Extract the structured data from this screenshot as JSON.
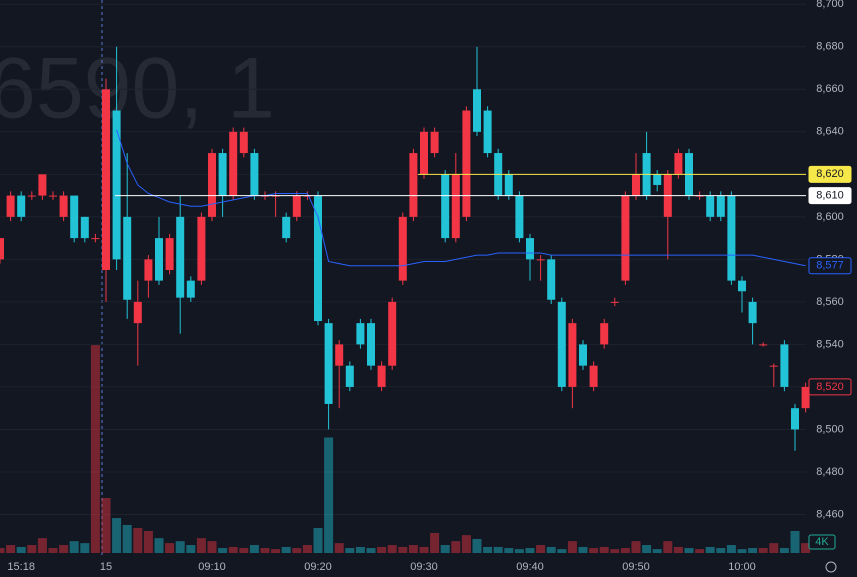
{
  "chart_data": {
    "type": "candlestick",
    "watermark": "6590, 1",
    "categories": [
      null,
      null,
      "15:18",
      null,
      null,
      null,
      null,
      null,
      null,
      null,
      "15",
      null,
      null,
      null,
      null,
      null,
      null,
      null,
      null,
      null,
      "09:10",
      null,
      null,
      null,
      null,
      null,
      null,
      null,
      null,
      null,
      "09:20",
      null,
      null,
      null,
      null,
      null,
      null,
      null,
      null,
      null,
      "09:30",
      null,
      null,
      null,
      null,
      null,
      null,
      null,
      null,
      null,
      "09:40",
      null,
      null,
      null,
      null,
      null,
      null,
      null,
      null,
      null,
      "09:50",
      null,
      null,
      null,
      null,
      null,
      null,
      null,
      null,
      null,
      "10:00",
      null,
      null,
      null,
      null,
      null,
      null
    ],
    "open": [
      8580,
      8600,
      8610,
      8610,
      8610,
      8610,
      8600,
      8610,
      8600,
      8590,
      8575,
      8650,
      8600,
      8550,
      8570,
      8590,
      8575,
      8600,
      8570,
      8570,
      8600,
      8630,
      8610,
      8630,
      8630,
      8610,
      8610,
      8600,
      8600,
      8610,
      8610,
      8550,
      8530,
      8530,
      8550,
      8550,
      8520,
      8530,
      8570,
      8600,
      8620,
      8630,
      8620,
      8590,
      8600,
      8660,
      8650,
      8630,
      8620,
      8610,
      8590,
      8580,
      8580,
      8560,
      8520,
      8540,
      8520,
      8540,
      8560,
      8570,
      8610,
      8630,
      8620,
      8600,
      8620,
      8630,
      8610,
      8610,
      8610,
      8610,
      8570,
      8560,
      8540,
      8530,
      8540,
      8510,
      8510
    ],
    "high": [
      8590,
      8612,
      8612,
      8612,
      8620,
      8612,
      8612,
      8610,
      8600,
      8592,
      8665,
      8680,
      8630,
      8570,
      8582,
      8600,
      8592,
      8610,
      8572,
      8602,
      8632,
      8632,
      8642,
      8642,
      8632,
      8612,
      8612,
      8602,
      8612,
      8612,
      8612,
      8552,
      8542,
      8532,
      8552,
      8552,
      8532,
      8562,
      8602,
      8632,
      8642,
      8642,
      8622,
      8630,
      8652,
      8680,
      8652,
      8632,
      8622,
      8612,
      8592,
      8582,
      8582,
      8562,
      8552,
      8542,
      8532,
      8552,
      8562,
      8612,
      8630,
      8640,
      8622,
      8622,
      8632,
      8632,
      8612,
      8612,
      8612,
      8612,
      8572,
      8562,
      8541,
      8531,
      8542,
      8512,
      8522
    ],
    "low": [
      8578,
      8598,
      8598,
      8608,
      8608,
      8608,
      8598,
      8588,
      8588,
      8588,
      8560,
      8575,
      8552,
      8530,
      8562,
      8568,
      8573,
      8545,
      8560,
      8568,
      8598,
      8600,
      8608,
      8628,
      8608,
      8608,
      8600,
      8588,
      8598,
      8608,
      8549,
      8500,
      8510,
      8518,
      8538,
      8528,
      8518,
      8528,
      8568,
      8598,
      8618,
      8628,
      8588,
      8588,
      8598,
      8638,
      8628,
      8608,
      8608,
      8588,
      8570,
      8570,
      8559,
      8518,
      8510,
      8528,
      8518,
      8538,
      8558,
      8568,
      8608,
      8608,
      8612,
      8580,
      8618,
      8608,
      8608,
      8598,
      8598,
      8568,
      8555,
      8540,
      8539,
      8520,
      8518,
      8490,
      8508
    ],
    "close": [
      8590,
      8610,
      8600,
      8610,
      8620,
      8610,
      8610,
      8590,
      8590,
      8590,
      8660,
      8580,
      8561,
      8560,
      8580,
      8570,
      8590,
      8562,
      8562,
      8600,
      8630,
      8610,
      8640,
      8640,
      8610,
      8610,
      8610,
      8590,
      8610,
      8610,
      8551,
      8512,
      8540,
      8520,
      8540,
      8530,
      8530,
      8560,
      8600,
      8630,
      8640,
      8640,
      8590,
      8620,
      8650,
      8640,
      8630,
      8610,
      8610,
      8590,
      8580,
      8580,
      8561,
      8520,
      8550,
      8530,
      8530,
      8550,
      8560,
      8610,
      8620,
      8610,
      8615,
      8620,
      8630,
      8610,
      8610,
      8600,
      8600,
      8570,
      8565,
      8550,
      8540,
      8530,
      8520,
      8500,
      8520
    ],
    "volume": [
      1800,
      2900,
      2200,
      2900,
      5400,
      1800,
      2900,
      4300,
      3600,
      75600,
      20000,
      12700,
      10200,
      9100,
      8000,
      5400,
      3600,
      4300,
      2900,
      5400,
      4300,
      1800,
      2200,
      1800,
      2900,
      1800,
      1400,
      2200,
      1800,
      2900,
      9100,
      42000,
      3600,
      1800,
      2200,
      1800,
      2200,
      2900,
      2200,
      2900,
      2200,
      7300,
      2900,
      4300,
      6500,
      5100,
      2200,
      2200,
      1800,
      1400,
      1800,
      2900,
      2200,
      1400,
      4300,
      2200,
      1800,
      2200,
      1400,
      1800,
      4300,
      2900,
      1400,
      4300,
      2200,
      1800,
      1400,
      2200,
      1800,
      2900,
      1400,
      1800,
      1800,
      3600,
      1800,
      8000,
      3600
    ],
    "colors": {
      "up": "#f23645",
      "down": "#22c3d6"
    },
    "vwap": {
      "color": "#2962ff",
      "values": [
        null,
        null,
        null,
        null,
        null,
        null,
        null,
        null,
        null,
        null,
        null,
        8641,
        8625,
        8615,
        8611,
        8609,
        8607,
        8606,
        8605,
        8605,
        8606,
        8607,
        8608,
        8609,
        8610,
        8610,
        8611,
        8611,
        8611,
        8611,
        8600,
        8579,
        8578,
        8577,
        8577,
        8577,
        8577,
        8577,
        8577,
        8578,
        8579,
        8579,
        8579,
        8580,
        8581,
        8582,
        8582,
        8583,
        8583,
        8583,
        8583,
        8583,
        8582,
        8582,
        8582,
        8582,
        8582,
        8582,
        8582,
        8582,
        8582,
        8582,
        8582,
        8582,
        8582,
        8582,
        8582,
        8582,
        8582,
        8582,
        8582,
        8582,
        8581,
        8580,
        8579,
        8578,
        8577
      ]
    },
    "ylim": [
      8440,
      8702
    ],
    "yticks": [
      {
        "value": 8460,
        "label": "8,460"
      },
      {
        "value": 8480,
        "label": "8,480"
      },
      {
        "value": 8500,
        "label": "8,500"
      },
      {
        "value": 8520,
        "label": "8,520"
      },
      {
        "value": 8540,
        "label": "8,540"
      },
      {
        "value": 8560,
        "label": "8,560"
      },
      {
        "value": 8580,
        "label": "8,580"
      },
      {
        "value": 8600,
        "label": "8,600"
      },
      {
        "value": 8620,
        "label": "8,620"
      },
      {
        "value": 8640,
        "label": "8,640"
      },
      {
        "value": 8660,
        "label": "8,660"
      },
      {
        "value": 8680,
        "label": "8,680"
      },
      {
        "value": 8700,
        "label": "8,700"
      }
    ],
    "volume_lim": [
      0,
      80000
    ],
    "volume_ticks": [
      {
        "value": 4000,
        "label": "4K"
      }
    ],
    "price_labels": [
      {
        "value": 8620,
        "label": "8,620",
        "color": "#f7e84a"
      },
      {
        "value": 8610,
        "label": "8,610",
        "color": "#ffffff"
      },
      {
        "value": 8577,
        "label": "8,577",
        "color": "#2962ff"
      },
      {
        "value": 8520,
        "label": "8,520",
        "color": "#f23645"
      }
    ],
    "grid": true
  }
}
